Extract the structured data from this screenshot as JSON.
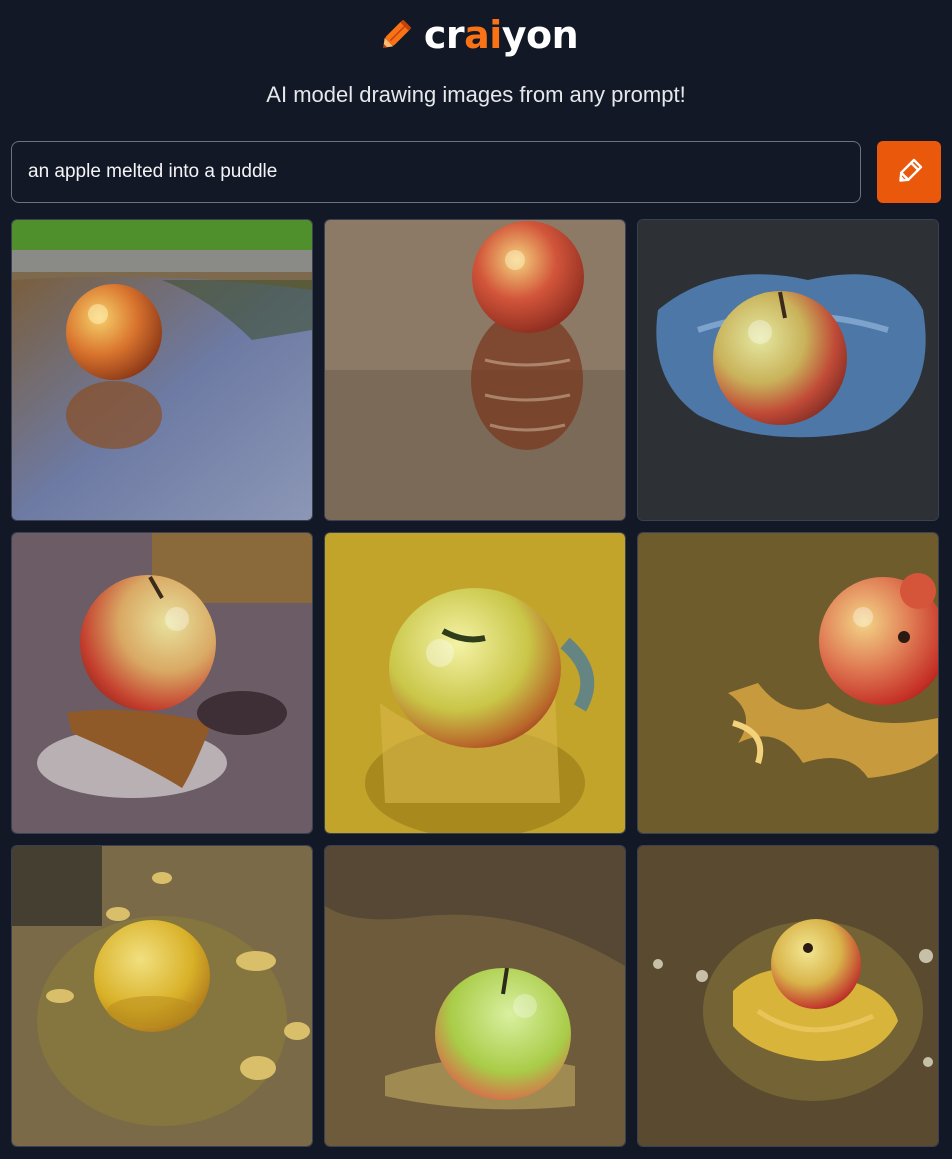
{
  "header": {
    "logo_prefix": "cr",
    "logo_accent": "ai",
    "logo_suffix": "yon",
    "tagline": "AI model drawing images from any prompt!",
    "accent_color": "#f97316"
  },
  "prompt": {
    "value": "an apple melted into a puddle",
    "button_icon": "pencil-icon",
    "button_color": "#ea580c"
  },
  "results": {
    "image_count": 9,
    "images": [
      {
        "subject": "red-yellow apple in reflective puddle on asphalt, grass at top"
      },
      {
        "subject": "red apple with reflection on wet sandy ground"
      },
      {
        "subject": "red-green apple in blue puddle on dark gravel"
      },
      {
        "subject": "red-yellow apple melting into brown puddle"
      },
      {
        "subject": "green-yellow apple melting into yellow liquid"
      },
      {
        "subject": "red apple with swirling golden liquid"
      },
      {
        "subject": "yellow apple in murky puddle with droplets"
      },
      {
        "subject": "green apple in brown puddle with foam"
      },
      {
        "subject": "small red-yellow apple in golden ripple puddle"
      }
    ]
  }
}
